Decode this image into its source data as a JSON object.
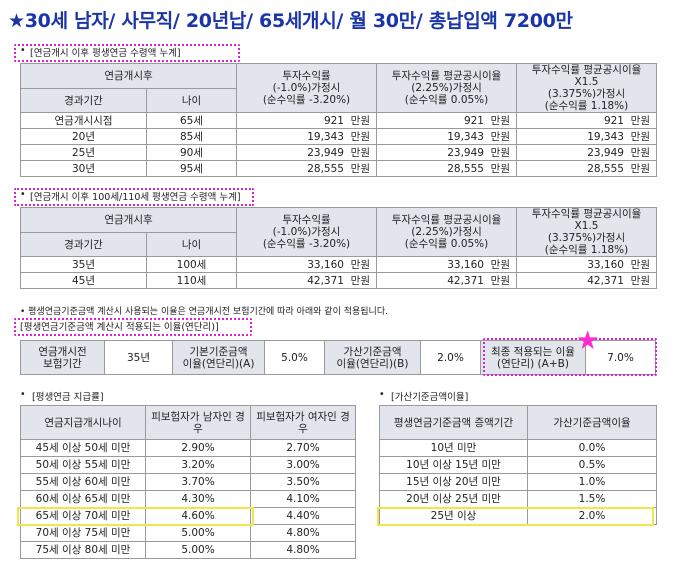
{
  "title": "★30세 남자/ 사무직/ 20년납/ 65세개시/ 월 30만/ 총납입액 7200만",
  "section1": {
    "label": "[연금개시 이후 평생연금 수령액 누계]",
    "bullet": "•",
    "head_group": "연금개시후",
    "head_period": "경과기간",
    "head_age": "나이",
    "col1": [
      "투자수익률",
      "(-1.0%)가정시",
      "(순수익률 -3.20%)"
    ],
    "col2": [
      "투자수익률 평균공시이율",
      "(2.25%)가정시",
      "(순수익률 0.05%)"
    ],
    "col3": [
      "투자수익률 평균공시이율X1.5",
      "(3.375%)가정시",
      "(순수익률 1.18%)"
    ],
    "unit": "만원",
    "rows": [
      {
        "period": "연금개시시점",
        "age": "65세",
        "v1": "921",
        "v2": "921",
        "v3": "921"
      },
      {
        "period": "20년",
        "age": "85세",
        "v1": "19,343",
        "v2": "19,343",
        "v3": "19,343"
      },
      {
        "period": "25년",
        "age": "90세",
        "v1": "23,949",
        "v2": "23,949",
        "v3": "23,949"
      },
      {
        "period": "30년",
        "age": "95세",
        "v1": "28,555",
        "v2": "28,555",
        "v3": "28,555"
      }
    ]
  },
  "section2": {
    "label": "[연금개시 이후 100세/110세 평생연금 수령액 누계]",
    "bullet": "•",
    "head_group": "연금개시후",
    "head_period": "경과기간",
    "head_age": "나이",
    "col1": [
      "투자수익률",
      "(-1.0%)가정시",
      "(순수익률 -3.20%)"
    ],
    "col2": [
      "투자수익률 평균공시이율",
      "(2.25%)가정시",
      "(순수익률 0.05%)"
    ],
    "col3": [
      "투자수익률 평균공시이율X1.5",
      "(3.375%)가정시",
      "(순수익률 1.18%)"
    ],
    "unit": "만원",
    "rows": [
      {
        "period": "35년",
        "age": "100세",
        "v1": "33,160",
        "v2": "33,160",
        "v3": "33,160"
      },
      {
        "period": "45년",
        "age": "110세",
        "v1": "42,371",
        "v2": "42,371",
        "v3": "42,371"
      }
    ]
  },
  "note": "•  평생연금기준금액 계산시 사용되는 이율은 연금개시전 보험기간에 따라 아래와 같이 적용됩니다.",
  "section3": {
    "label": "[평생연금기준금액 계산시 적용되는 이율(연단리)]",
    "h1": [
      "연금개시전",
      "보험기간"
    ],
    "v1": "35년",
    "h2": [
      "기본기준금액",
      "이율(연단리)(A)"
    ],
    "v2": "5.0%",
    "h3": [
      "가산기준금액",
      "이율(연단리)(B)"
    ],
    "v3": "2.0%",
    "h4": [
      "최종 적용되는 이율",
      "(연단리) (A+B)"
    ],
    "v4": "7.0%",
    "star": "★"
  },
  "section4": {
    "label": "[평생연금 지급률]",
    "bullet": "•",
    "head": [
      "연금지급개시나이",
      "피보험자가 남자인 경우",
      "피보험자가 여자인 경우"
    ],
    "rows": [
      {
        "age": "45세 이상 50세 미만",
        "m": "2.90%",
        "f": "2.70%"
      },
      {
        "age": "50세 이상 55세 미만",
        "m": "3.20%",
        "f": "3.00%"
      },
      {
        "age": "55세 이상 60세 미만",
        "m": "3.70%",
        "f": "3.50%"
      },
      {
        "age": "60세 이상 65세 미만",
        "m": "4.30%",
        "f": "4.10%"
      },
      {
        "age": "65세 이상 70세 미만",
        "m": "4.60%",
        "f": "4.40%"
      },
      {
        "age": "70세 이상 75세 미만",
        "m": "5.00%",
        "f": "4.80%"
      },
      {
        "age": "75세 이상 80세 미만",
        "m": "5.00%",
        "f": "4.80%"
      }
    ]
  },
  "section5": {
    "label": "[가산기준금액이율]",
    "bullet": "•",
    "head": [
      "평생연금기준금액 증액기간",
      "가산기준금액이율"
    ],
    "rows": [
      {
        "period": "10년 미만",
        "rate": "0.0%"
      },
      {
        "period": "10년 이상 15년 미만",
        "rate": "0.5%"
      },
      {
        "period": "15년 이상 20년 미만",
        "rate": "1.0%"
      },
      {
        "period": "20년 이상 25년 미만",
        "rate": "1.5%"
      },
      {
        "period": "25년 이상",
        "rate": "2.0%"
      }
    ]
  },
  "colors": {
    "title": "#1a35a8",
    "header_bg": "#e2e5ec",
    "dotted": "#e020d0",
    "highlight": "#f2e64a",
    "star": "#ff2bd1"
  }
}
